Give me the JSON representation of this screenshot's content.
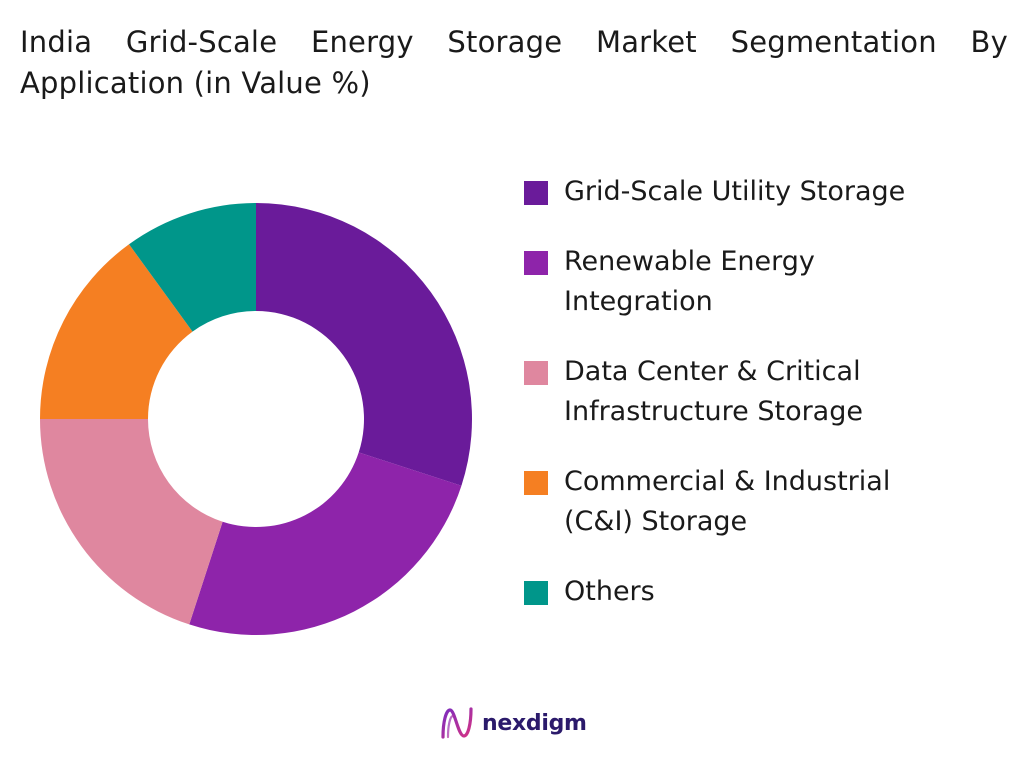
{
  "chart_data": {
    "type": "pie",
    "title": "India Grid-Scale Energy Storage Market Segmentation By Application (in Value %)",
    "categories": [
      "Grid-Scale Utility Storage",
      "Renewable Energy Integration",
      "Data Center & Critical Infrastructure Storage",
      "Commercial & Industrial (C&I) Storage",
      "Others"
    ],
    "values": [
      30,
      25,
      20,
      15,
      10
    ],
    "colors": [
      "#6a1b9a",
      "#8e24aa",
      "#df879f",
      "#f57f22",
      "#00968a"
    ],
    "legend_position": "right"
  },
  "brand": {
    "name": "nexdigm",
    "mark_icon": "nexdigm-logo-icon"
  }
}
